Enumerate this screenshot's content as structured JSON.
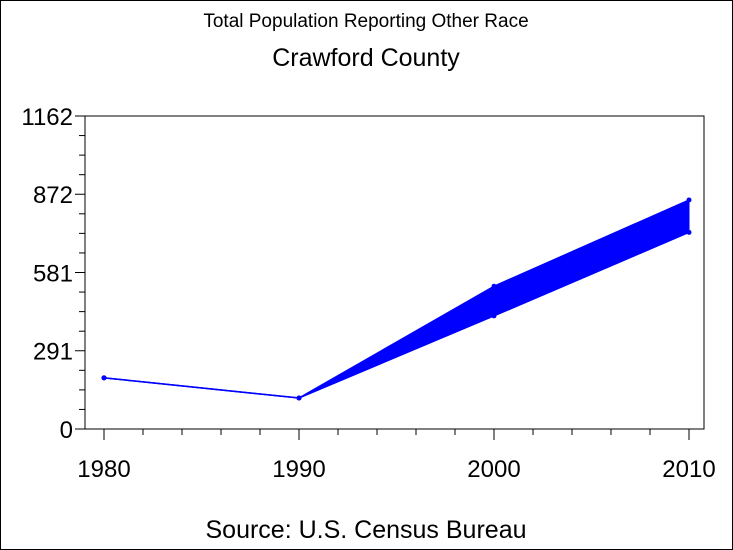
{
  "chart_data": {
    "type": "area",
    "title": "Total Population Reporting Other Race",
    "subtitle": "Crawford County",
    "source": "Source: U.S. Census Bureau",
    "x": [
      1980,
      1990,
      2000,
      2010
    ],
    "x_tick_labels": [
      "1980",
      "1990",
      "2000",
      "2010"
    ],
    "y_tick_values": [
      0,
      291,
      581,
      872,
      1162
    ],
    "y_tick_labels": [
      "0",
      "291",
      "581",
      "872",
      "1162"
    ],
    "ylim": [
      0,
      1162
    ],
    "xlim": [
      1980,
      2010
    ],
    "series": [
      {
        "values": [
          190,
          115,
          530,
          850
        ]
      },
      {
        "values": [
          190,
          115,
          420,
          730
        ]
      }
    ],
    "colors": {
      "series": "#0000ff",
      "axis": "#000000",
      "background": "#ffffff"
    },
    "grid": false
  }
}
